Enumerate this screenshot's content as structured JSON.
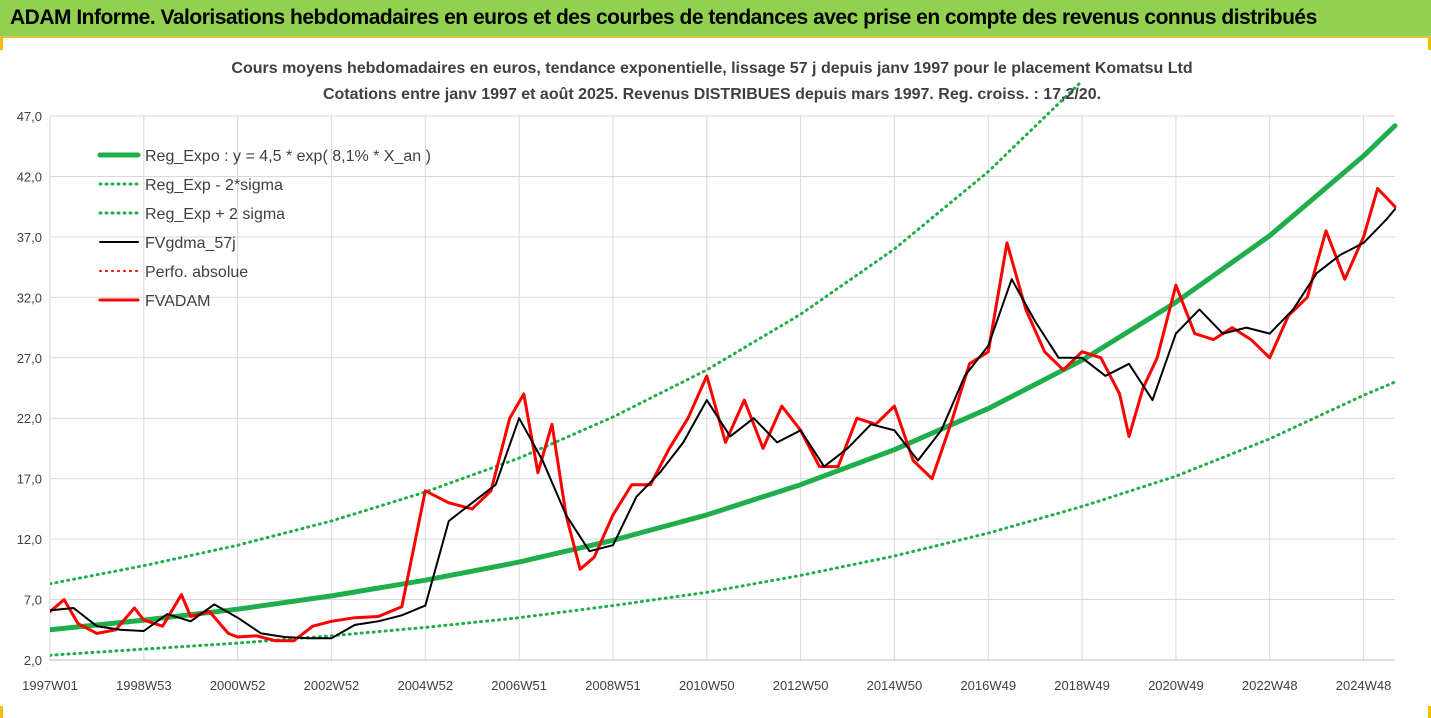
{
  "banner": {
    "title": "ADAM Informe. Valorisations hebdomadaires en euros et des courbes de tendances avec prise en compte des revenus connus distribués"
  },
  "colors": {
    "banner_bg": "#92d050",
    "trend": "#1fae4b",
    "price": "#ff0000",
    "smooth": "#000000",
    "grid": "#d9d9d9"
  },
  "chart_data": {
    "type": "line",
    "title": "Cours moyens hebdomadaires en euros, tendance exponentielle, lissage 57 j depuis janv 1997 pour le placement Komatsu Ltd",
    "subtitle": "Cotations entre janv 1997 et août 2025. Revenus DISTRIBUES depuis mars 1997. Reg. croiss. : 17,2/20.",
    "xlabel": "",
    "ylabel": "",
    "ylim": [
      2.0,
      47.0
    ],
    "xlim": [
      1997.0,
      2025.67
    ],
    "y_ticks": [
      "2,0",
      "7,0",
      "12,0",
      "17,0",
      "22,0",
      "27,0",
      "32,0",
      "37,0",
      "42,0",
      "47,0"
    ],
    "x_ticks": [
      {
        "label": "1997W01",
        "x": 1997.0
      },
      {
        "label": "1998W53",
        "x": 1999.0
      },
      {
        "label": "2000W52",
        "x": 2001.0
      },
      {
        "label": "2002W52",
        "x": 2003.0
      },
      {
        "label": "2004W52",
        "x": 2005.0
      },
      {
        "label": "2006W51",
        "x": 2007.0
      },
      {
        "label": "2008W51",
        "x": 2009.0
      },
      {
        "label": "2010W50",
        "x": 2011.0
      },
      {
        "label": "2012W50",
        "x": 2013.0
      },
      {
        "label": "2014W50",
        "x": 2015.0
      },
      {
        "label": "2016W49",
        "x": 2017.0
      },
      {
        "label": "2018W49",
        "x": 2019.0
      },
      {
        "label": "2020W49",
        "x": 2021.0
      },
      {
        "label": "2022W48",
        "x": 2023.0
      },
      {
        "label": "2024W48",
        "x": 2025.0
      }
    ],
    "grid": true,
    "legend_position": "top-left",
    "series": [
      {
        "name": "Reg_Expo : y = 4,5 * exp( 8,1% *  X_an )",
        "style": "solid",
        "color": "#1fae4b",
        "x": [
          1997.0,
          1999.0,
          2001.0,
          2003.0,
          2005.0,
          2007.0,
          2009.0,
          2011.0,
          2013.0,
          2015.0,
          2017.0,
          2019.0,
          2021.0,
          2023.0,
          2025.0,
          2025.67
        ],
        "values": [
          4.5,
          5.3,
          6.2,
          7.3,
          8.6,
          10.1,
          11.9,
          14.0,
          16.5,
          19.4,
          22.8,
          26.8,
          31.6,
          37.1,
          43.7,
          46.2
        ]
      },
      {
        "name": "Reg_Exp - 2*sigma",
        "style": "dotted",
        "color": "#1fae4b",
        "x": [
          1997.0,
          1999.0,
          2001.0,
          2003.0,
          2005.0,
          2007.0,
          2009.0,
          2011.0,
          2013.0,
          2015.0,
          2017.0,
          2019.0,
          2021.0,
          2023.0,
          2025.0,
          2025.67
        ],
        "values": [
          2.4,
          2.9,
          3.4,
          4.0,
          4.7,
          5.5,
          6.5,
          7.6,
          9.0,
          10.6,
          12.5,
          14.7,
          17.2,
          20.3,
          23.9,
          25.0
        ]
      },
      {
        "name": "Reg_Exp + 2 sigma",
        "style": "dotted",
        "color": "#1fae4b",
        "x": [
          1997.0,
          1999.0,
          2001.0,
          2003.0,
          2005.0,
          2007.0,
          2009.0,
          2011.0,
          2013.0,
          2015.0,
          2017.0,
          2019.0
        ],
        "values": [
          8.3,
          9.8,
          11.5,
          13.5,
          15.9,
          18.7,
          22.1,
          26.0,
          30.6,
          36.0,
          42.4,
          49.9
        ]
      },
      {
        "name": "FVgdma_57j",
        "style": "solid",
        "color": "#000000",
        "x": [
          1997.0,
          1997.5,
          1998.0,
          1998.5,
          1999.0,
          1999.5,
          2000.0,
          2000.5,
          2001.0,
          2001.5,
          2002.0,
          2002.5,
          2003.0,
          2003.5,
          2004.0,
          2004.5,
          2005.0,
          2005.5,
          2006.0,
          2006.5,
          2007.0,
          2007.5,
          2008.0,
          2008.5,
          2009.0,
          2009.5,
          2010.0,
          2010.5,
          2011.0,
          2011.5,
          2012.0,
          2012.5,
          2013.0,
          2013.5,
          2014.0,
          2014.5,
          2015.0,
          2015.5,
          2016.0,
          2016.5,
          2017.0,
          2017.5,
          2018.0,
          2018.5,
          2019.0,
          2019.5,
          2020.0,
          2020.5,
          2021.0,
          2021.5,
          2022.0,
          2022.5,
          2023.0,
          2023.5,
          2024.0,
          2024.5,
          2025.0,
          2025.5,
          2025.67
        ],
        "values": [
          6.1,
          6.3,
          4.8,
          4.5,
          4.4,
          5.8,
          5.2,
          6.6,
          5.5,
          4.2,
          3.9,
          3.8,
          3.8,
          4.9,
          5.2,
          5.7,
          6.5,
          13.5,
          15.0,
          16.5,
          22.0,
          18.5,
          14.0,
          11.0,
          11.5,
          15.5,
          17.5,
          20.0,
          23.5,
          20.5,
          22.0,
          20.0,
          21.0,
          18.0,
          19.5,
          21.5,
          21.0,
          18.5,
          21.0,
          25.5,
          28.0,
          33.5,
          30.0,
          27.0,
          27.0,
          25.5,
          26.5,
          23.5,
          29.0,
          31.0,
          29.0,
          29.5,
          29.0,
          31.0,
          34.0,
          35.5,
          36.5,
          38.5,
          39.3
        ]
      },
      {
        "name": "Perfo. absolue",
        "style": "dotted",
        "color": "#ff0000",
        "x": [],
        "values": []
      },
      {
        "name": "FVADAM",
        "style": "solid",
        "color": "#ff0000",
        "x": [
          1997.0,
          1997.3,
          1997.6,
          1998.0,
          1998.4,
          1998.8,
          1999.0,
          1999.4,
          1999.8,
          2000.0,
          2000.4,
          2000.8,
          2001.0,
          2001.4,
          2001.8,
          2002.2,
          2002.6,
          2003.0,
          2003.5,
          2004.0,
          2004.5,
          2005.0,
          2005.5,
          2006.0,
          2006.4,
          2006.8,
          2007.1,
          2007.4,
          2007.7,
          2008.0,
          2008.3,
          2008.6,
          2009.0,
          2009.4,
          2009.8,
          2010.2,
          2010.6,
          2011.0,
          2011.4,
          2011.8,
          2012.2,
          2012.6,
          2013.0,
          2013.4,
          2013.8,
          2014.2,
          2014.6,
          2015.0,
          2015.4,
          2015.8,
          2016.2,
          2016.6,
          2017.0,
          2017.4,
          2017.8,
          2018.2,
          2018.6,
          2019.0,
          2019.4,
          2019.8,
          2020.0,
          2020.3,
          2020.6,
          2021.0,
          2021.4,
          2021.8,
          2022.2,
          2022.6,
          2023.0,
          2023.4,
          2023.8,
          2024.2,
          2024.6,
          2025.0,
          2025.3,
          2025.67
        ],
        "values": [
          6.0,
          7.0,
          5.0,
          4.2,
          4.5,
          6.3,
          5.3,
          4.8,
          7.4,
          5.6,
          6.0,
          4.2,
          3.9,
          4.0,
          3.6,
          3.6,
          4.8,
          5.2,
          5.5,
          5.6,
          6.4,
          16.0,
          15.0,
          14.5,
          16.0,
          22.0,
          24.0,
          17.5,
          21.5,
          14.0,
          9.5,
          10.5,
          14.0,
          16.5,
          16.5,
          19.5,
          22.0,
          25.5,
          20.0,
          23.5,
          19.5,
          23.0,
          21.0,
          18.0,
          18.0,
          22.0,
          21.5,
          23.0,
          18.5,
          17.0,
          21.5,
          26.5,
          27.5,
          36.5,
          31.0,
          27.5,
          26.0,
          27.5,
          27.0,
          24.0,
          20.5,
          24.5,
          27.0,
          33.0,
          29.0,
          28.5,
          29.5,
          28.5,
          27.0,
          30.5,
          32.0,
          37.5,
          33.5,
          37.0,
          41.0,
          39.5
        ]
      }
    ]
  }
}
